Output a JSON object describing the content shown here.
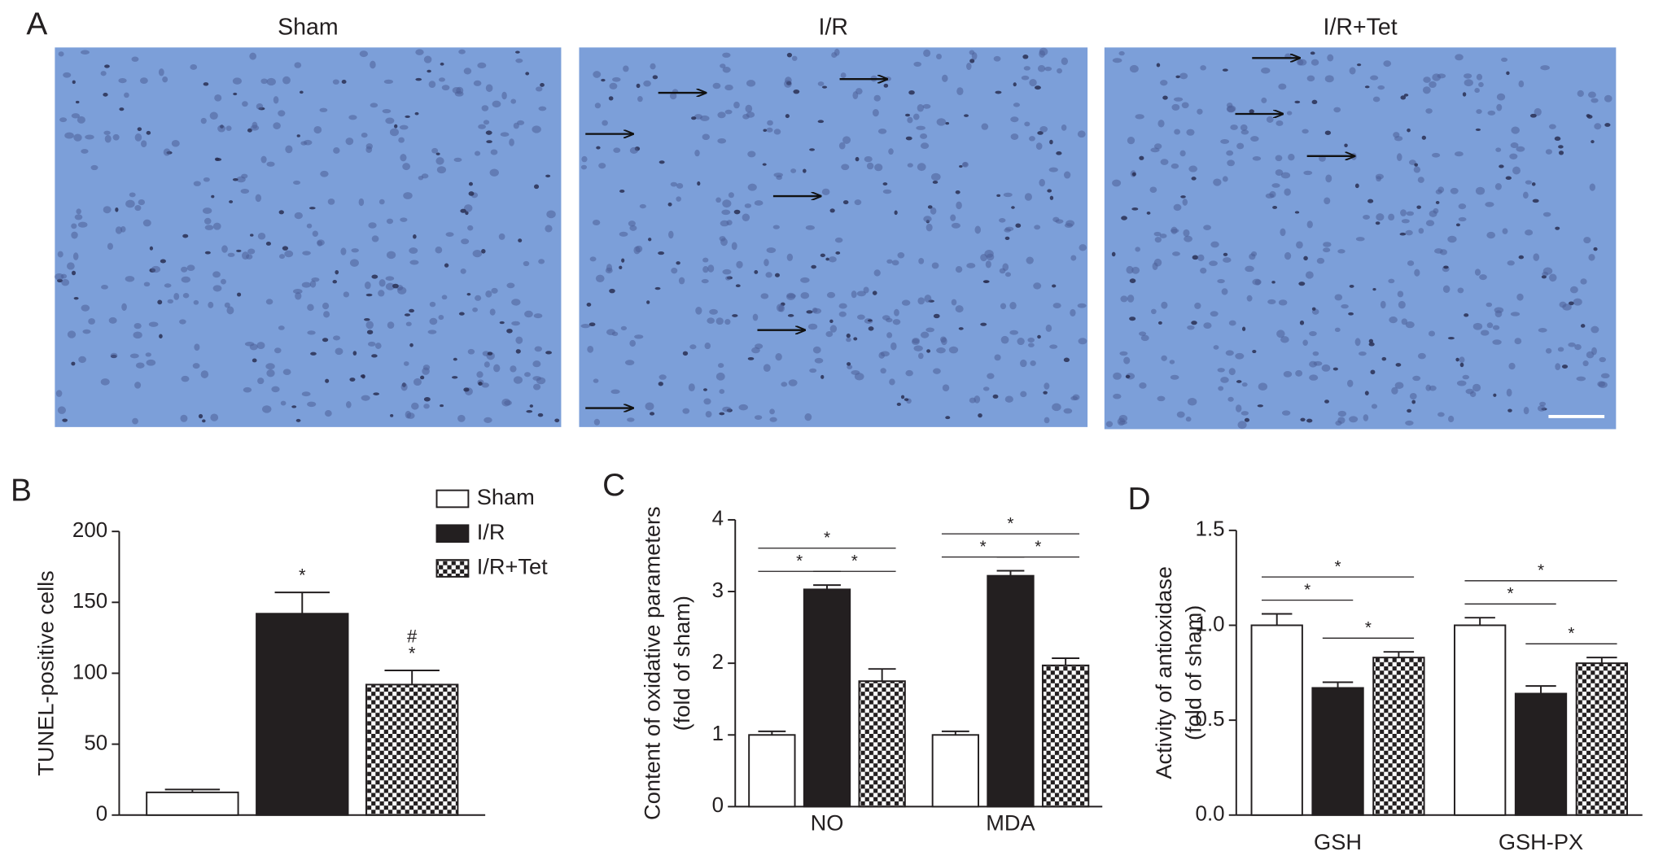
{
  "figure_a": {
    "panel_label": "A",
    "titles": [
      "Sham",
      "I/R",
      "I/R+Tet"
    ]
  },
  "chart_data": [
    {
      "type": "bar",
      "panel_label": "B",
      "ylabel": "TUNEL-positive cells",
      "categories": [
        null
      ],
      "ylim": [
        0,
        200
      ],
      "yticks": [
        0,
        50,
        100,
        150,
        200
      ],
      "legend": "upper right",
      "series": [
        {
          "name": "Sham",
          "color": "#ffffff",
          "values": [
            16
          ],
          "errors": [
            2
          ]
        },
        {
          "name": "I/R",
          "color": "#231f20",
          "values": [
            142
          ],
          "errors": [
            15
          ],
          "marks": [
            "*"
          ]
        },
        {
          "name": "I/R+Tet",
          "color": "#231f20",
          "pattern": "checker",
          "values": [
            92
          ],
          "errors": [
            10
          ],
          "marks": [
            "#",
            "*"
          ]
        }
      ]
    },
    {
      "type": "bar",
      "panel_label": "C",
      "ylabel": [
        "Content of oxidative parameters",
        "(fold of sham)"
      ],
      "categories": [
        "NO",
        "MDA"
      ],
      "ylim": [
        0,
        4
      ],
      "yticks": [
        0,
        1,
        2,
        3,
        4
      ],
      "series": [
        {
          "color": "#ffffff",
          "values": [
            1.0,
            1.0
          ],
          "errors": [
            0.05,
            0.05
          ]
        },
        {
          "color": "#231f20",
          "values": [
            3.03,
            3.22
          ],
          "errors": [
            0.06,
            0.07
          ]
        },
        {
          "color": "#231f20",
          "pattern": "checker",
          "values": [
            1.75,
            1.97
          ],
          "errors": [
            0.17,
            0.1
          ]
        }
      ],
      "significance": [
        "*",
        "*",
        "*",
        "*",
        "*",
        "*"
      ]
    },
    {
      "type": "bar",
      "panel_label": "D",
      "ylabel": [
        "Activity of antioxidase",
        "(fold of sham)"
      ],
      "categories": [
        "GSH",
        "GSH-PX"
      ],
      "ylim": [
        0,
        1.5
      ],
      "yticks": [
        {
          "value": 0,
          "label": "0.0"
        },
        0.5,
        {
          "value": 1,
          "label": "1.0"
        },
        1.5
      ],
      "series": [
        {
          "color": "#ffffff",
          "values": [
            1.0,
            1.0
          ],
          "errors": [
            0.06,
            0.04
          ]
        },
        {
          "color": "#231f20",
          "values": [
            0.67,
            0.64
          ],
          "errors": [
            0.03,
            0.04
          ]
        },
        {
          "color": "#231f20",
          "pattern": "checker",
          "values": [
            0.83,
            0.8
          ],
          "errors": [
            0.03,
            0.03
          ]
        }
      ],
      "significance": [
        "*",
        "*",
        "*",
        "*",
        "*",
        "*"
      ]
    }
  ]
}
